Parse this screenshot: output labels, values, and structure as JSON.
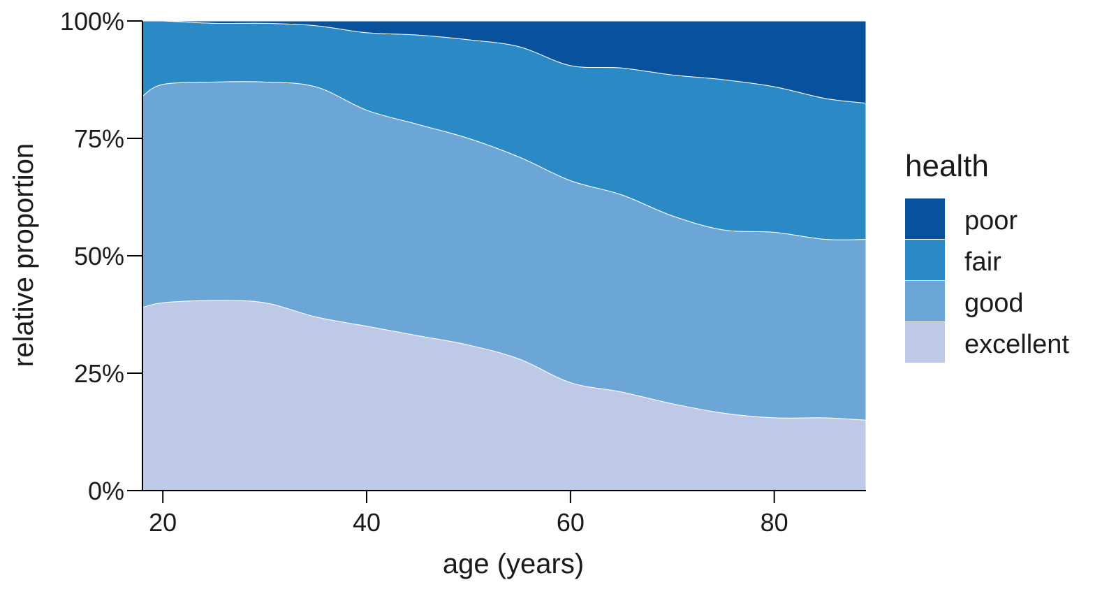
{
  "chart_data": {
    "type": "area",
    "stacked": true,
    "normalized": true,
    "xlabel": "age (years)",
    "ylabel": "relative proportion",
    "xlim": [
      18,
      89
    ],
    "ylim": [
      0,
      1
    ],
    "x_ticks": [
      20,
      40,
      60,
      80
    ],
    "x_tick_labels": [
      "20",
      "40",
      "60",
      "80"
    ],
    "y_ticks": [
      0,
      0.25,
      0.5,
      0.75,
      1
    ],
    "y_tick_labels": [
      "0%",
      "25%",
      "50%",
      "75%",
      "100%"
    ],
    "grid": false,
    "legend": {
      "title": "health",
      "placement": "right",
      "entries": [
        {
          "name": "poor",
          "color": "#08519C"
        },
        {
          "name": "fair",
          "color": "#2B89C5"
        },
        {
          "name": "good",
          "color": "#6BA6D6"
        },
        {
          "name": "excellent",
          "color": "#BDC9E6"
        }
      ]
    },
    "x": [
      18,
      20,
      25,
      30,
      35,
      40,
      45,
      50,
      55,
      60,
      65,
      70,
      75,
      80,
      85,
      89
    ],
    "series": [
      {
        "name": "excellent",
        "color": "#BDC9E6",
        "values": [
          0.39,
          0.4,
          0.405,
          0.4,
          0.37,
          0.35,
          0.33,
          0.31,
          0.28,
          0.23,
          0.21,
          0.185,
          0.165,
          0.155,
          0.155,
          0.15
        ]
      },
      {
        "name": "good",
        "color": "#6BA6D6",
        "values": [
          0.45,
          0.465,
          0.465,
          0.47,
          0.49,
          0.46,
          0.45,
          0.44,
          0.43,
          0.43,
          0.42,
          0.4,
          0.39,
          0.395,
          0.38,
          0.385
        ]
      },
      {
        "name": "fair",
        "color": "#2B89C5",
        "values": [
          0.16,
          0.135,
          0.125,
          0.125,
          0.13,
          0.165,
          0.19,
          0.21,
          0.235,
          0.245,
          0.27,
          0.3,
          0.32,
          0.31,
          0.3,
          0.29
        ]
      },
      {
        "name": "poor",
        "color": "#08519C",
        "values": [
          0.0,
          0.0,
          0.005,
          0.005,
          0.01,
          0.025,
          0.03,
          0.04,
          0.055,
          0.095,
          0.1,
          0.115,
          0.125,
          0.14,
          0.165,
          0.175
        ]
      }
    ]
  }
}
